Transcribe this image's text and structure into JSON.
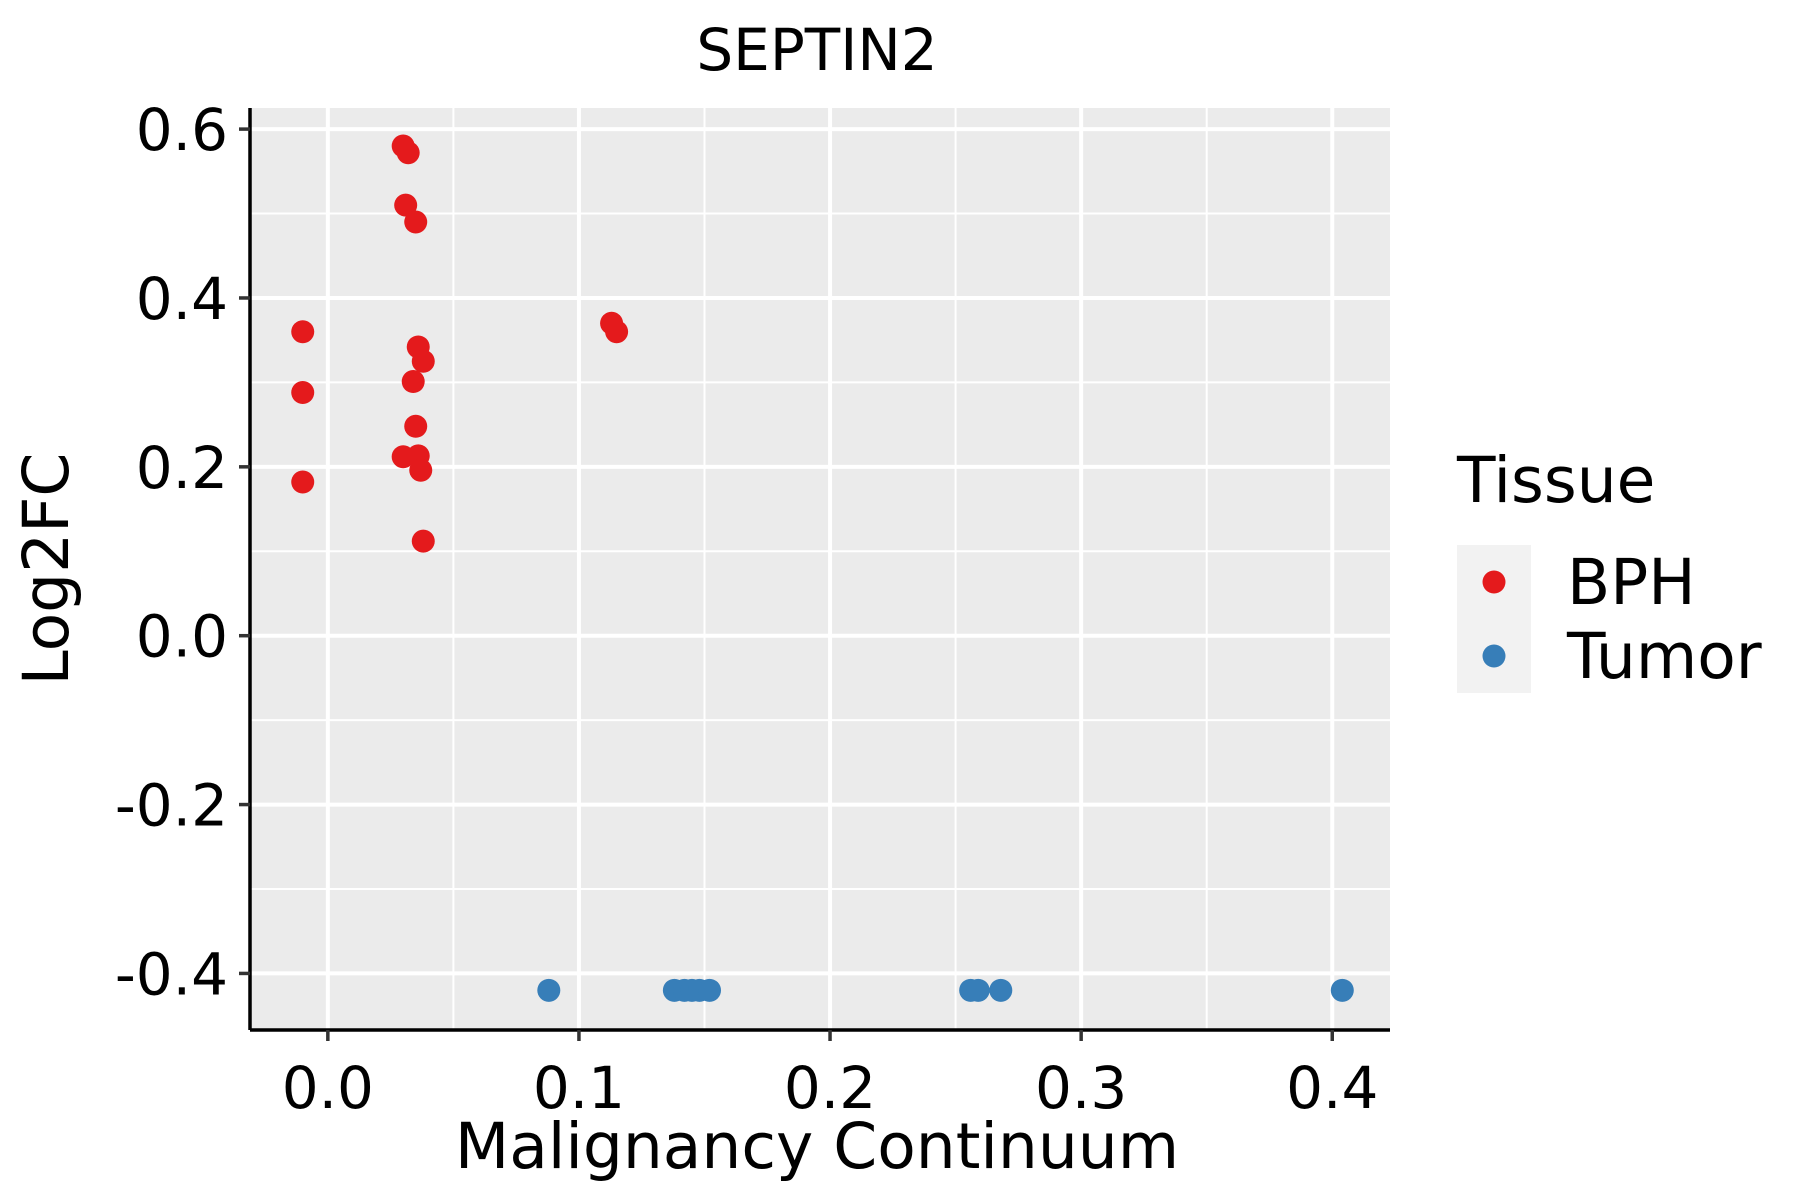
{
  "chart_data": {
    "type": "scatter",
    "title": "SEPTIN2",
    "xlabel": "Malignancy Continuum",
    "ylabel": "Log2FC",
    "xlim": [
      -0.031,
      0.423
    ],
    "ylim": [
      -0.467,
      0.625
    ],
    "x_ticks": [
      0.0,
      0.1,
      0.2,
      0.3,
      0.4
    ],
    "x_tick_labels": [
      "0.0",
      "0.1",
      "0.2",
      "0.3",
      "0.4"
    ],
    "y_ticks": [
      -0.4,
      -0.2,
      0.0,
      0.2,
      0.4,
      0.6
    ],
    "y_tick_labels": [
      "-0.4",
      "-0.2",
      "0.0",
      "0.2",
      "0.4",
      "0.6"
    ],
    "grid": true,
    "legend": {
      "title": "Tissue",
      "position": "right",
      "entries": [
        "BPH",
        "Tumor"
      ]
    },
    "series": [
      {
        "name": "BPH",
        "color": "#E41A1C",
        "points": [
          {
            "x": -0.01,
            "y": 0.36
          },
          {
            "x": -0.01,
            "y": 0.288
          },
          {
            "x": -0.01,
            "y": 0.182
          },
          {
            "x": 0.03,
            "y": 0.58
          },
          {
            "x": 0.032,
            "y": 0.572
          },
          {
            "x": 0.031,
            "y": 0.51
          },
          {
            "x": 0.035,
            "y": 0.49
          },
          {
            "x": 0.036,
            "y": 0.342
          },
          {
            "x": 0.038,
            "y": 0.325
          },
          {
            "x": 0.034,
            "y": 0.301
          },
          {
            "x": 0.035,
            "y": 0.248
          },
          {
            "x": 0.03,
            "y": 0.212
          },
          {
            "x": 0.036,
            "y": 0.213
          },
          {
            "x": 0.037,
            "y": 0.196
          },
          {
            "x": 0.038,
            "y": 0.112
          },
          {
            "x": 0.113,
            "y": 0.37
          },
          {
            "x": 0.115,
            "y": 0.36
          }
        ]
      },
      {
        "name": "Tumor",
        "color": "#377EB8",
        "points": [
          {
            "x": 0.088,
            "y": -0.42
          },
          {
            "x": 0.138,
            "y": -0.42
          },
          {
            "x": 0.142,
            "y": -0.42
          },
          {
            "x": 0.145,
            "y": -0.42
          },
          {
            "x": 0.148,
            "y": -0.42
          },
          {
            "x": 0.152,
            "y": -0.42
          },
          {
            "x": 0.256,
            "y": -0.42
          },
          {
            "x": 0.259,
            "y": -0.42
          },
          {
            "x": 0.268,
            "y": -0.42
          },
          {
            "x": 0.404,
            "y": -0.42
          }
        ]
      }
    ]
  }
}
